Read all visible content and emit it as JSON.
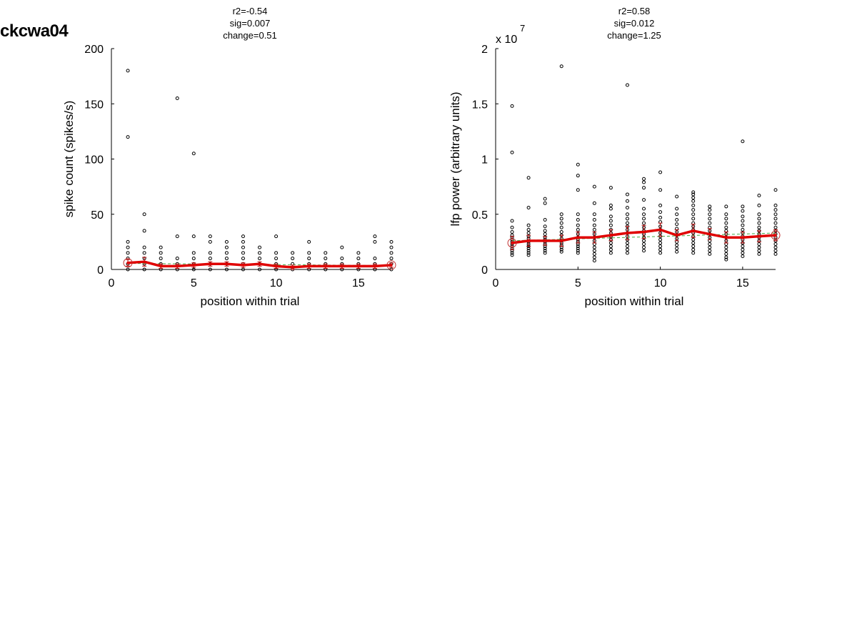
{
  "page": {
    "title": "ckcwa04"
  },
  "chart_data": [
    {
      "type": "scatter",
      "stats": [
        "r2=-0.54",
        "sig=0.007",
        "change=0.51"
      ],
      "xlabel": "position within trial",
      "ylabel": "spike count (spikes/s)",
      "exponent_label": "",
      "xlim": [
        0,
        17
      ],
      "ylim": [
        0,
        200
      ],
      "xticks": [
        0,
        5,
        10,
        15
      ],
      "yticks": [
        0,
        50,
        100,
        150,
        200
      ],
      "xtick_labels": [
        "0",
        "5",
        "10",
        "15"
      ],
      "ytick_labels": [
        "0",
        "50",
        "100",
        "150",
        "200"
      ],
      "points": [
        [
          1,
          180
        ],
        [
          1,
          120
        ],
        [
          1,
          25
        ],
        [
          1,
          20
        ],
        [
          1,
          15
        ],
        [
          1,
          10
        ],
        [
          1,
          5
        ],
        [
          1,
          0
        ],
        [
          2,
          50
        ],
        [
          2,
          35
        ],
        [
          2,
          20
        ],
        [
          2,
          15
        ],
        [
          2,
          10
        ],
        [
          2,
          5
        ],
        [
          2,
          0
        ],
        [
          3,
          20
        ],
        [
          3,
          15
        ],
        [
          3,
          10
        ],
        [
          3,
          5
        ],
        [
          3,
          0
        ],
        [
          4,
          155
        ],
        [
          4,
          30
        ],
        [
          4,
          10
        ],
        [
          4,
          5
        ],
        [
          4,
          0
        ],
        [
          5,
          105
        ],
        [
          5,
          30
        ],
        [
          5,
          15
        ],
        [
          5,
          10
        ],
        [
          5,
          5
        ],
        [
          5,
          0
        ],
        [
          6,
          30
        ],
        [
          6,
          25
        ],
        [
          6,
          15
        ],
        [
          6,
          10
        ],
        [
          6,
          5
        ],
        [
          6,
          0
        ],
        [
          7,
          25
        ],
        [
          7,
          20
        ],
        [
          7,
          15
        ],
        [
          7,
          10
        ],
        [
          7,
          5
        ],
        [
          7,
          0
        ],
        [
          8,
          30
        ],
        [
          8,
          25
        ],
        [
          8,
          20
        ],
        [
          8,
          15
        ],
        [
          8,
          10
        ],
        [
          8,
          5
        ],
        [
          8,
          0
        ],
        [
          9,
          20
        ],
        [
          9,
          15
        ],
        [
          9,
          10
        ],
        [
          9,
          5
        ],
        [
          9,
          0
        ],
        [
          10,
          30
        ],
        [
          10,
          15
        ],
        [
          10,
          10
        ],
        [
          10,
          5
        ],
        [
          10,
          0
        ],
        [
          11,
          15
        ],
        [
          11,
          10
        ],
        [
          11,
          5
        ],
        [
          11,
          0
        ],
        [
          12,
          25
        ],
        [
          12,
          15
        ],
        [
          12,
          10
        ],
        [
          12,
          5
        ],
        [
          12,
          0
        ],
        [
          13,
          15
        ],
        [
          13,
          10
        ],
        [
          13,
          5
        ],
        [
          13,
          0
        ],
        [
          14,
          20
        ],
        [
          14,
          10
        ],
        [
          14,
          5
        ],
        [
          14,
          0
        ],
        [
          15,
          15
        ],
        [
          15,
          10
        ],
        [
          15,
          5
        ],
        [
          15,
          0
        ],
        [
          16,
          30
        ],
        [
          16,
          25
        ],
        [
          16,
          10
        ],
        [
          16,
          5
        ],
        [
          16,
          0
        ],
        [
          17,
          25
        ],
        [
          17,
          20
        ],
        [
          17,
          15
        ],
        [
          17,
          10
        ],
        [
          17,
          5
        ],
        [
          17,
          0
        ]
      ],
      "mean": [
        6,
        7,
        3,
        3,
        4,
        5,
        5,
        4,
        5,
        3,
        2,
        3,
        3,
        3,
        3,
        3,
        4
      ],
      "error": [
        3,
        4,
        2,
        2,
        2,
        2,
        2,
        2,
        2,
        2,
        2,
        2,
        2,
        2,
        2,
        2,
        2
      ],
      "trend": [
        5.5,
        3.5
      ]
    },
    {
      "type": "scatter",
      "stats": [
        "r2=0.58",
        "sig=0.012",
        "change=1.25"
      ],
      "xlabel": "position within trial",
      "ylabel": "lfp power (arbitrary units)",
      "exponent_label": "x 10",
      "exponent_power": "7",
      "xlim": [
        0,
        17
      ],
      "ylim": [
        0,
        2
      ],
      "xticks": [
        0,
        5,
        10,
        15
      ],
      "yticks": [
        0,
        0.5,
        1,
        1.5,
        2
      ],
      "xtick_labels": [
        "0",
        "5",
        "10",
        "15"
      ],
      "ytick_labels": [
        "0",
        "0.5",
        "1",
        "1.5",
        "2"
      ],
      "points": [
        [
          1,
          1.48
        ],
        [
          1,
          1.06
        ],
        [
          1,
          0.44
        ],
        [
          1,
          0.38
        ],
        [
          1,
          0.34
        ],
        [
          1,
          0.31
        ],
        [
          1,
          0.29
        ],
        [
          1,
          0.27
        ],
        [
          1,
          0.25
        ],
        [
          1,
          0.23
        ],
        [
          1,
          0.21
        ],
        [
          1,
          0.19
        ],
        [
          1,
          0.17
        ],
        [
          1,
          0.15
        ],
        [
          1,
          0.13
        ],
        [
          2,
          0.83
        ],
        [
          2,
          0.56
        ],
        [
          2,
          0.4
        ],
        [
          2,
          0.36
        ],
        [
          2,
          0.33
        ],
        [
          2,
          0.3
        ],
        [
          2,
          0.28
        ],
        [
          2,
          0.25
        ],
        [
          2,
          0.23
        ],
        [
          2,
          0.21
        ],
        [
          2,
          0.19
        ],
        [
          2,
          0.17
        ],
        [
          2,
          0.15
        ],
        [
          2,
          0.13
        ],
        [
          3,
          0.64
        ],
        [
          3,
          0.6
        ],
        [
          3,
          0.45
        ],
        [
          3,
          0.39
        ],
        [
          3,
          0.35
        ],
        [
          3,
          0.32
        ],
        [
          3,
          0.29
        ],
        [
          3,
          0.27
        ],
        [
          3,
          0.25
        ],
        [
          3,
          0.23
        ],
        [
          3,
          0.21
        ],
        [
          3,
          0.19
        ],
        [
          3,
          0.17
        ],
        [
          3,
          0.15
        ],
        [
          4,
          1.84
        ],
        [
          4,
          0.5
        ],
        [
          4,
          0.46
        ],
        [
          4,
          0.42
        ],
        [
          4,
          0.38
        ],
        [
          4,
          0.34
        ],
        [
          4,
          0.31
        ],
        [
          4,
          0.28
        ],
        [
          4,
          0.26
        ],
        [
          4,
          0.24
        ],
        [
          4,
          0.22
        ],
        [
          4,
          0.2
        ],
        [
          4,
          0.18
        ],
        [
          4,
          0.16
        ],
        [
          5,
          0.95
        ],
        [
          5,
          0.85
        ],
        [
          5,
          0.72
        ],
        [
          5,
          0.5
        ],
        [
          5,
          0.45
        ],
        [
          5,
          0.4
        ],
        [
          5,
          0.36
        ],
        [
          5,
          0.32
        ],
        [
          5,
          0.29
        ],
        [
          5,
          0.27
        ],
        [
          5,
          0.25
        ],
        [
          5,
          0.23
        ],
        [
          5,
          0.21
        ],
        [
          5,
          0.19
        ],
        [
          5,
          0.17
        ],
        [
          5,
          0.15
        ],
        [
          6,
          0.75
        ],
        [
          6,
          0.6
        ],
        [
          6,
          0.5
        ],
        [
          6,
          0.45
        ],
        [
          6,
          0.4
        ],
        [
          6,
          0.36
        ],
        [
          6,
          0.32
        ],
        [
          6,
          0.29
        ],
        [
          6,
          0.26
        ],
        [
          6,
          0.23
        ],
        [
          6,
          0.2
        ],
        [
          6,
          0.17
        ],
        [
          6,
          0.14
        ],
        [
          6,
          0.11
        ],
        [
          6,
          0.08
        ],
        [
          7,
          0.74
        ],
        [
          7,
          0.58
        ],
        [
          7,
          0.55
        ],
        [
          7,
          0.48
        ],
        [
          7,
          0.44
        ],
        [
          7,
          0.4
        ],
        [
          7,
          0.36
        ],
        [
          7,
          0.33
        ],
        [
          7,
          0.3
        ],
        [
          7,
          0.27
        ],
        [
          7,
          0.24
        ],
        [
          7,
          0.21
        ],
        [
          7,
          0.18
        ],
        [
          7,
          0.15
        ],
        [
          8,
          1.67
        ],
        [
          8,
          0.68
        ],
        [
          8,
          0.62
        ],
        [
          8,
          0.56
        ],
        [
          8,
          0.5
        ],
        [
          8,
          0.46
        ],
        [
          8,
          0.42
        ],
        [
          8,
          0.39
        ],
        [
          8,
          0.36
        ],
        [
          8,
          0.33
        ],
        [
          8,
          0.3
        ],
        [
          8,
          0.27
        ],
        [
          8,
          0.24
        ],
        [
          8,
          0.21
        ],
        [
          8,
          0.18
        ],
        [
          8,
          0.15
        ],
        [
          9,
          0.82
        ],
        [
          9,
          0.79
        ],
        [
          9,
          0.74
        ],
        [
          9,
          0.63
        ],
        [
          9,
          0.55
        ],
        [
          9,
          0.5
        ],
        [
          9,
          0.46
        ],
        [
          9,
          0.42
        ],
        [
          9,
          0.38
        ],
        [
          9,
          0.35
        ],
        [
          9,
          0.32
        ],
        [
          9,
          0.29
        ],
        [
          9,
          0.26
        ],
        [
          9,
          0.23
        ],
        [
          9,
          0.2
        ],
        [
          9,
          0.17
        ],
        [
          10,
          0.88
        ],
        [
          10,
          0.72
        ],
        [
          10,
          0.58
        ],
        [
          10,
          0.52
        ],
        [
          10,
          0.47
        ],
        [
          10,
          0.43
        ],
        [
          10,
          0.39
        ],
        [
          10,
          0.36
        ],
        [
          10,
          0.33
        ],
        [
          10,
          0.3
        ],
        [
          10,
          0.27
        ],
        [
          10,
          0.24
        ],
        [
          10,
          0.21
        ],
        [
          10,
          0.18
        ],
        [
          10,
          0.15
        ],
        [
          11,
          0.66
        ],
        [
          11,
          0.55
        ],
        [
          11,
          0.5
        ],
        [
          11,
          0.45
        ],
        [
          11,
          0.41
        ],
        [
          11,
          0.37
        ],
        [
          11,
          0.34
        ],
        [
          11,
          0.31
        ],
        [
          11,
          0.28
        ],
        [
          11,
          0.25
        ],
        [
          11,
          0.22
        ],
        [
          11,
          0.19
        ],
        [
          11,
          0.16
        ],
        [
          12,
          0.7
        ],
        [
          12,
          0.68
        ],
        [
          12,
          0.65
        ],
        [
          12,
          0.62
        ],
        [
          12,
          0.58
        ],
        [
          12,
          0.54
        ],
        [
          12,
          0.5
        ],
        [
          12,
          0.46
        ],
        [
          12,
          0.42
        ],
        [
          12,
          0.39
        ],
        [
          12,
          0.36
        ],
        [
          12,
          0.33
        ],
        [
          12,
          0.3
        ],
        [
          12,
          0.27
        ],
        [
          12,
          0.24
        ],
        [
          12,
          0.21
        ],
        [
          12,
          0.18
        ],
        [
          12,
          0.15
        ],
        [
          13,
          0.57
        ],
        [
          13,
          0.54
        ],
        [
          13,
          0.5
        ],
        [
          13,
          0.46
        ],
        [
          13,
          0.42
        ],
        [
          13,
          0.38
        ],
        [
          13,
          0.35
        ],
        [
          13,
          0.32
        ],
        [
          13,
          0.29
        ],
        [
          13,
          0.26
        ],
        [
          13,
          0.23
        ],
        [
          13,
          0.2
        ],
        [
          13,
          0.17
        ],
        [
          13,
          0.14
        ],
        [
          14,
          0.57
        ],
        [
          14,
          0.5
        ],
        [
          14,
          0.46
        ],
        [
          14,
          0.42
        ],
        [
          14,
          0.38
        ],
        [
          14,
          0.35
        ],
        [
          14,
          0.32
        ],
        [
          14,
          0.29
        ],
        [
          14,
          0.26
        ],
        [
          14,
          0.23
        ],
        [
          14,
          0.2
        ],
        [
          14,
          0.17
        ],
        [
          14,
          0.14
        ],
        [
          14,
          0.11
        ],
        [
          14,
          0.09
        ],
        [
          15,
          1.16
        ],
        [
          15,
          0.57
        ],
        [
          15,
          0.53
        ],
        [
          15,
          0.48
        ],
        [
          15,
          0.44
        ],
        [
          15,
          0.4
        ],
        [
          15,
          0.36
        ],
        [
          15,
          0.33
        ],
        [
          15,
          0.3
        ],
        [
          15,
          0.27
        ],
        [
          15,
          0.24
        ],
        [
          15,
          0.21
        ],
        [
          15,
          0.18
        ],
        [
          15,
          0.15
        ],
        [
          15,
          0.12
        ],
        [
          16,
          0.67
        ],
        [
          16,
          0.58
        ],
        [
          16,
          0.5
        ],
        [
          16,
          0.46
        ],
        [
          16,
          0.42
        ],
        [
          16,
          0.38
        ],
        [
          16,
          0.35
        ],
        [
          16,
          0.32
        ],
        [
          16,
          0.29
        ],
        [
          16,
          0.26
        ],
        [
          16,
          0.23
        ],
        [
          16,
          0.2
        ],
        [
          16,
          0.17
        ],
        [
          16,
          0.14
        ],
        [
          17,
          0.72
        ],
        [
          17,
          0.58
        ],
        [
          17,
          0.54
        ],
        [
          17,
          0.5
        ],
        [
          17,
          0.46
        ],
        [
          17,
          0.42
        ],
        [
          17,
          0.38
        ],
        [
          17,
          0.35
        ],
        [
          17,
          0.32
        ],
        [
          17,
          0.29
        ],
        [
          17,
          0.26
        ],
        [
          17,
          0.23
        ],
        [
          17,
          0.2
        ],
        [
          17,
          0.17
        ],
        [
          17,
          0.14
        ]
      ],
      "mean": [
        0.24,
        0.26,
        0.26,
        0.26,
        0.29,
        0.29,
        0.31,
        0.33,
        0.34,
        0.36,
        0.31,
        0.35,
        0.32,
        0.29,
        0.29,
        0.3,
        0.31
      ],
      "error": [
        0.06,
        0.05,
        0.04,
        0.05,
        0.05,
        0.05,
        0.05,
        0.06,
        0.06,
        0.06,
        0.05,
        0.06,
        0.05,
        0.05,
        0.05,
        0.05,
        0.05
      ],
      "trend": [
        0.26,
        0.33
      ]
    }
  ],
  "colors": {
    "mean_line": "#e00000",
    "error_bar": "#c01010",
    "marker_circle": "#c03030",
    "trend_line": "#44aa44",
    "points": "#000000",
    "axes": "#000000"
  }
}
